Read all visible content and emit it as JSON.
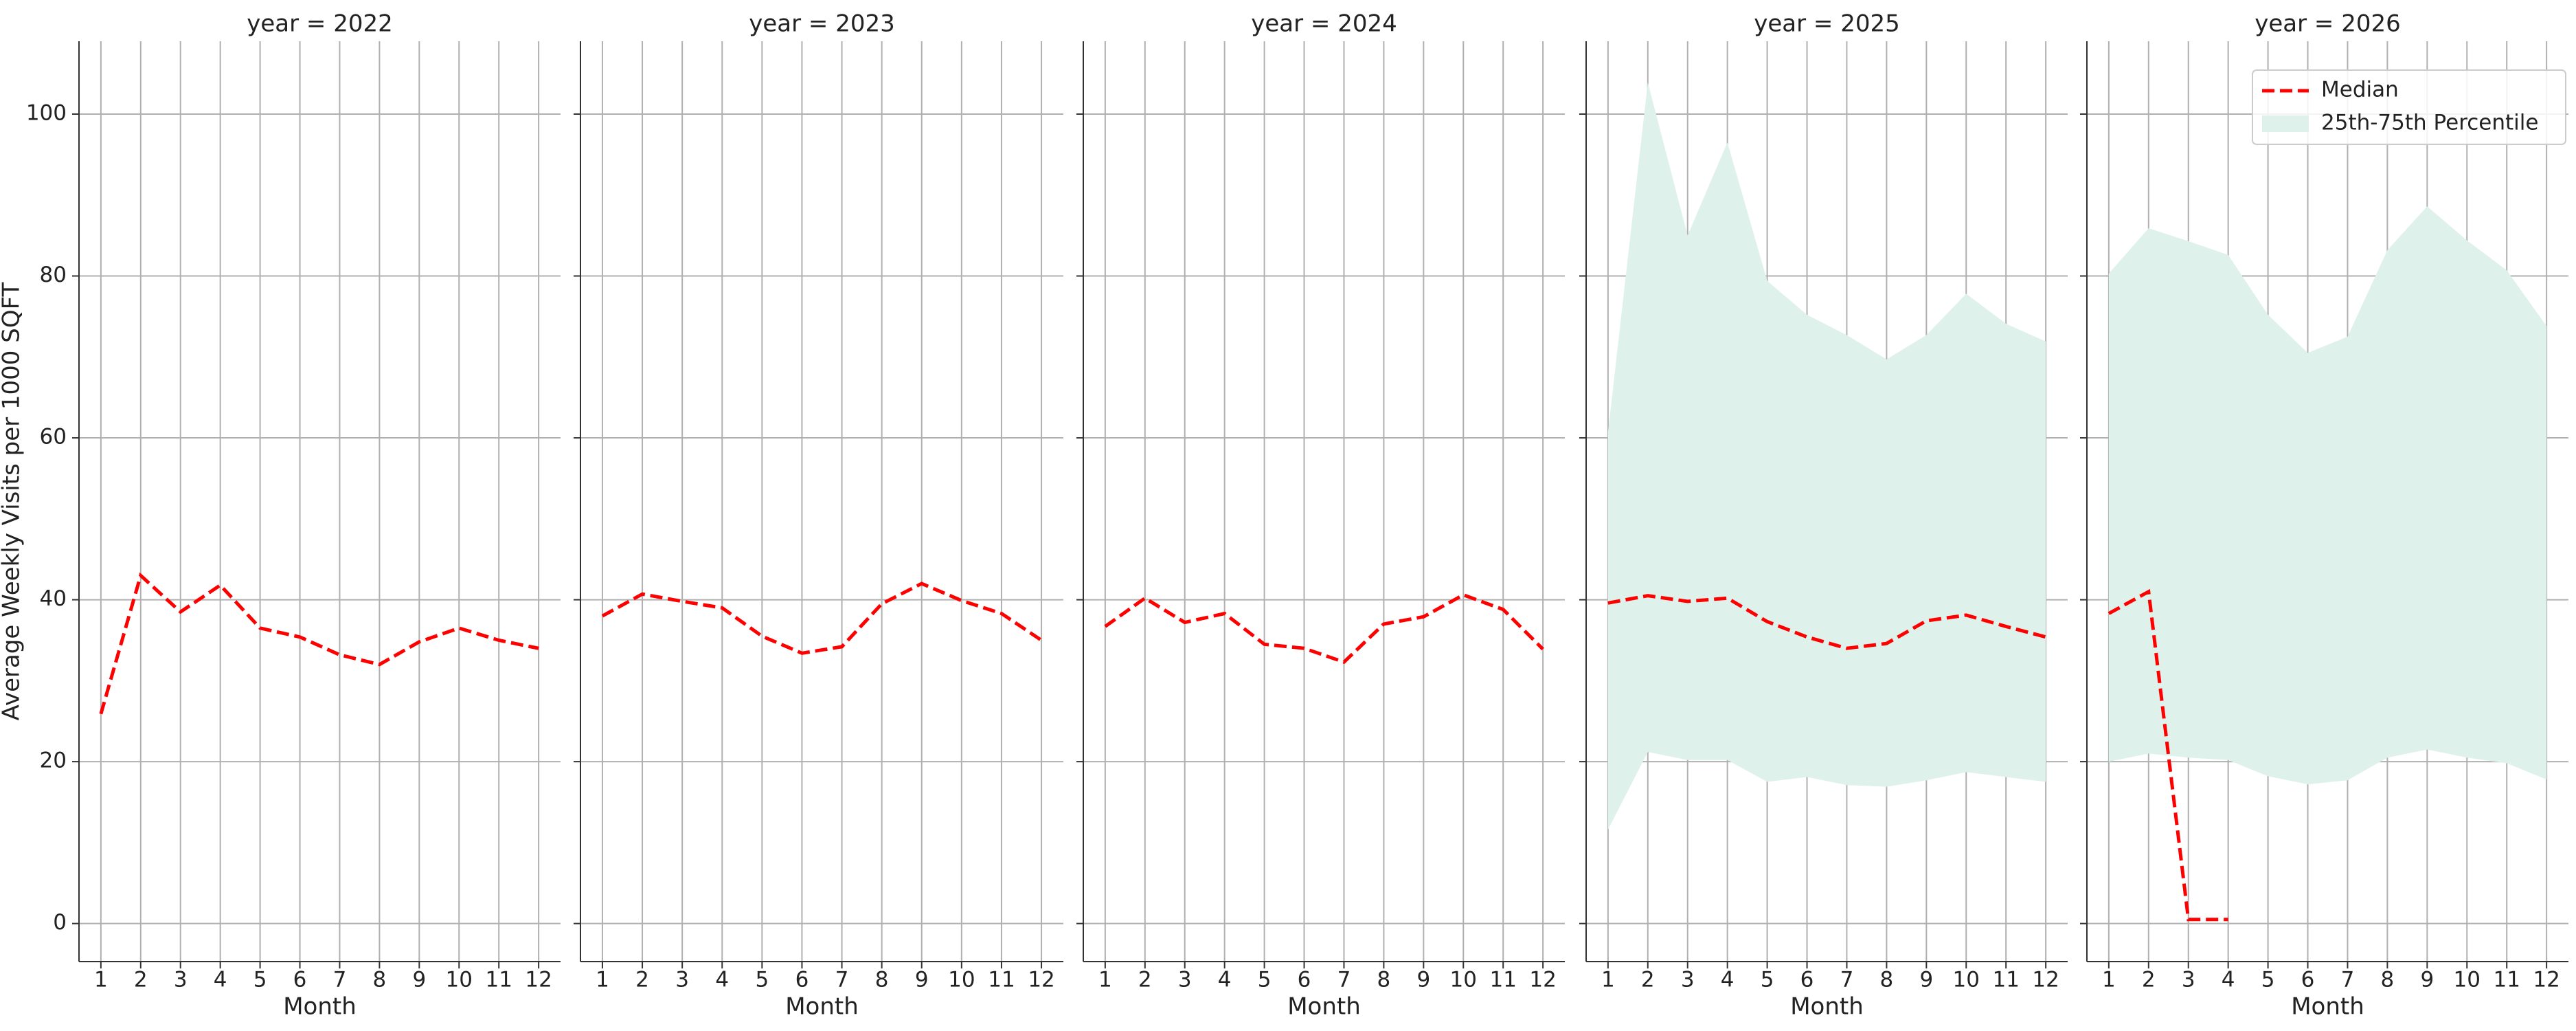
{
  "chart_data": [
    {
      "type": "line",
      "title": "year = 2022",
      "xlabel": "Month",
      "ylabel": "Average Weekly Visits per 1000 SQFT",
      "x": [
        1,
        2,
        3,
        4,
        5,
        6,
        7,
        8,
        9,
        10,
        11,
        12
      ],
      "xticks": [
        1,
        2,
        3,
        4,
        5,
        6,
        7,
        8,
        9,
        10,
        11,
        12
      ],
      "xlim": [
        0.45,
        12.55
      ],
      "ylim": [
        -4.7,
        109
      ],
      "yticks": [
        0,
        20,
        40,
        60,
        80,
        100
      ],
      "grid": true,
      "series": [
        {
          "kind": "line",
          "color": "#ff0000",
          "values": [
            25.9,
            43,
            38.5,
            41.8,
            36.5,
            35.4,
            33.2,
            32,
            34.8,
            36.5,
            35,
            34
          ]
        }
      ]
    },
    {
      "type": "line",
      "title": "year = 2023",
      "xlabel": "Month",
      "sharey": true,
      "x": [
        1,
        2,
        3,
        4,
        5,
        6,
        7,
        8,
        9,
        10,
        11,
        12
      ],
      "xticks": [
        1,
        2,
        3,
        4,
        5,
        6,
        7,
        8,
        9,
        10,
        11,
        12
      ],
      "xlim": [
        0.45,
        12.55
      ],
      "grid": true,
      "series": [
        {
          "kind": "line",
          "color": "#ff0000",
          "values": [
            38,
            40.7,
            39.8,
            39,
            35.5,
            33.4,
            34.2,
            39.5,
            42,
            39.9,
            38.3,
            35
          ]
        }
      ]
    },
    {
      "type": "line",
      "title": "year = 2024",
      "xlabel": "Month",
      "sharey": true,
      "x": [
        1,
        2,
        3,
        4,
        5,
        6,
        7,
        8,
        9,
        10,
        11,
        12
      ],
      "xticks": [
        1,
        2,
        3,
        4,
        5,
        6,
        7,
        8,
        9,
        10,
        11,
        12
      ],
      "xlim": [
        0.45,
        12.55
      ],
      "grid": true,
      "series": [
        {
          "kind": "line",
          "color": "#ff0000",
          "values": [
            36.7,
            40.2,
            37.2,
            38.3,
            34.5,
            34,
            32.3,
            37,
            37.9,
            40.6,
            38.8,
            33.9
          ]
        }
      ]
    },
    {
      "type": "line",
      "title": "year = 2025",
      "xlabel": "Month",
      "sharey": true,
      "x": [
        1,
        2,
        3,
        4,
        5,
        6,
        7,
        8,
        9,
        10,
        11,
        12
      ],
      "xticks": [
        1,
        2,
        3,
        4,
        5,
        6,
        7,
        8,
        9,
        10,
        11,
        12
      ],
      "xlim": [
        0.45,
        12.55
      ],
      "grid": true,
      "series": [
        {
          "kind": "band",
          "color": "#dff1eb",
          "low": [
            11.6,
            21.2,
            20.2,
            20.2,
            17.5,
            18.1,
            17.1,
            16.9,
            17.7,
            18.7,
            18.1,
            17.5
          ],
          "high": [
            60.7,
            103.9,
            85,
            96.5,
            79.4,
            75.2,
            72.7,
            69.7,
            72.7,
            77.8,
            74.1,
            71.9
          ]
        },
        {
          "kind": "line",
          "color": "#ff0000",
          "values": [
            39.6,
            40.5,
            39.8,
            40.2,
            37.3,
            35.4,
            34,
            34.6,
            37.4,
            38.1,
            36.7,
            35.4
          ]
        }
      ]
    },
    {
      "type": "line",
      "title": "year = 2026",
      "xlabel": "Month",
      "sharey": true,
      "legend": "upper right",
      "x": [
        1,
        2,
        3,
        4,
        5,
        6,
        7,
        8,
        9,
        10,
        11,
        12
      ],
      "xticks": [
        1,
        2,
        3,
        4,
        5,
        6,
        7,
        8,
        9,
        10,
        11,
        12
      ],
      "xlim": [
        0.45,
        12.55
      ],
      "grid": true,
      "series": [
        {
          "kind": "band",
          "name": "25th-75th Percentile",
          "color": "#dff1eb",
          "low": [
            20,
            21,
            20.5,
            20.2,
            18.2,
            17.2,
            17.7,
            20.5,
            21.5,
            20.5,
            19.8,
            17.8
          ],
          "high": [
            80.3,
            85.9,
            84.3,
            82.6,
            75.2,
            70.5,
            72.5,
            83.2,
            88.6,
            84.4,
            80.7,
            73.8
          ]
        },
        {
          "kind": "line",
          "name": "Median",
          "color": "#ff0000",
          "values": [
            38.3,
            41,
            0.5,
            0.5,
            null,
            null,
            null,
            null,
            null,
            null,
            null,
            null
          ]
        }
      ]
    }
  ]
}
